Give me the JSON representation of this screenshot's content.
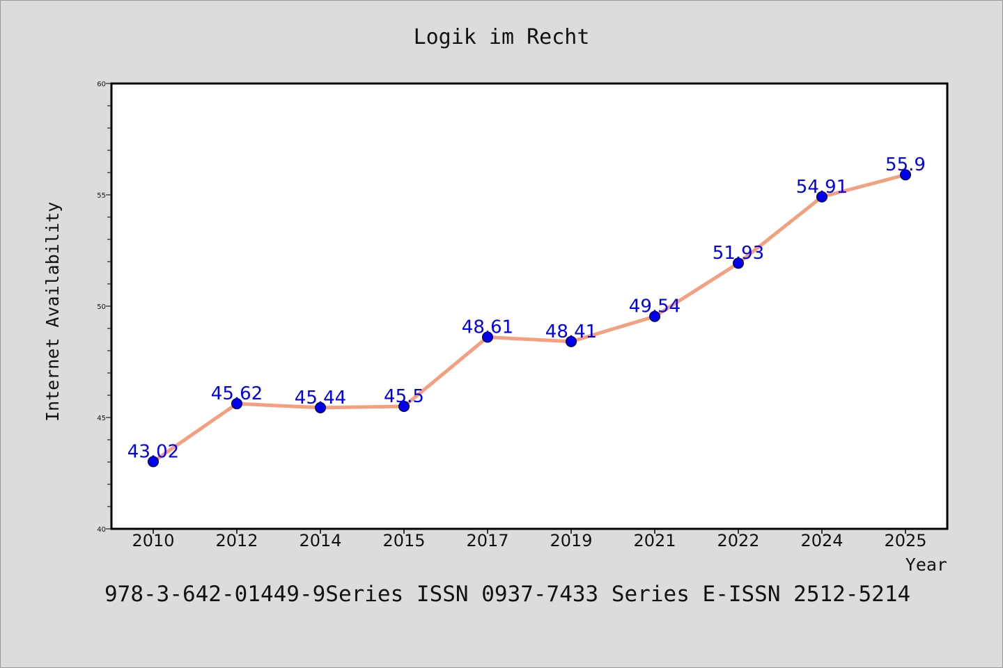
{
  "chart_data": {
    "type": "line",
    "title": "Logik im Recht",
    "xlabel": "Year",
    "ylabel": "Internet Availability",
    "categories": [
      "2010",
      "2012",
      "2014",
      "2015",
      "2017",
      "2019",
      "2021",
      "2022",
      "2024",
      "2025"
    ],
    "series": [
      {
        "values": [
          43.02,
          45.62,
          45.44,
          45.5,
          48.61,
          48.41,
          49.54,
          51.93,
          54.91,
          55.9
        ],
        "labels": [
          "43.02",
          "45.62",
          "45.44",
          "45.5",
          "48.61",
          "48.41",
          "49.54",
          "51.93",
          "54.91",
          "55.9"
        ],
        "line_color": "#f4a07f",
        "marker_color": "#0000ee",
        "label_color": "#0000ee"
      }
    ],
    "ylim": [
      40,
      60
    ],
    "y_major_ticks": [
      40,
      45,
      50,
      55,
      60
    ],
    "y_minor_step": 1,
    "grid": false,
    "legend": "none",
    "footer": "978-3-642-01449-9Series ISSN 0937-7433 Series E-ISSN 2512-5214"
  }
}
